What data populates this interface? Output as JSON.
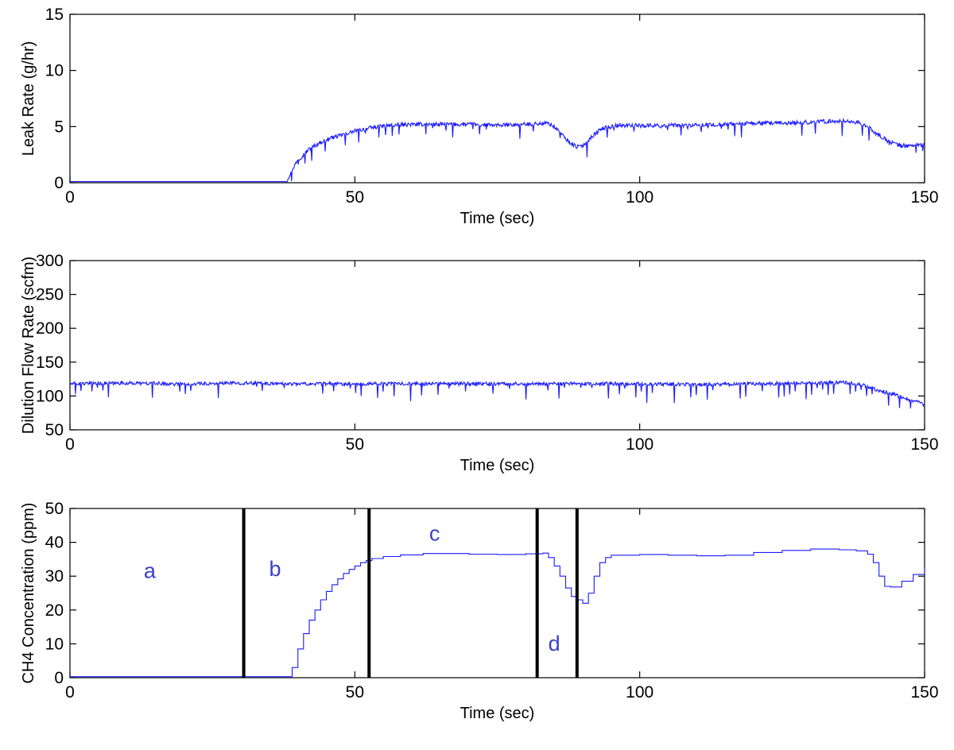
{
  "chart_data": [
    {
      "type": "line",
      "title": "",
      "xlabel": "Time (sec)",
      "ylabel": "Leak Rate (g/hr)",
      "xlim": [
        0,
        150
      ],
      "ylim": [
        0,
        15
      ],
      "xticks": [
        0,
        50,
        100,
        150
      ],
      "yticks": [
        0,
        5,
        10,
        15
      ],
      "grid": false,
      "color": "#1a1aff",
      "noise": 0.18,
      "spike_every": 11,
      "spike_depth": 0.6,
      "series": [
        {
          "x": [
            0,
            38,
            39,
            40,
            41,
            42,
            43,
            44,
            45,
            46,
            48,
            50,
            52,
            54,
            56,
            60,
            65,
            70,
            75,
            80,
            84,
            85,
            86,
            87,
            88,
            89,
            90,
            91,
            92,
            93,
            94,
            95,
            96,
            98,
            100,
            105,
            110,
            115,
            120,
            125,
            130,
            135,
            138,
            140,
            142,
            144,
            146,
            148,
            150
          ],
          "y": [
            0.1,
            0.1,
            1.2,
            2.0,
            2.5,
            3.0,
            3.3,
            3.6,
            3.8,
            4.0,
            4.3,
            4.6,
            4.8,
            5.0,
            5.1,
            5.2,
            5.2,
            5.2,
            5.1,
            5.2,
            5.3,
            5.0,
            4.5,
            3.9,
            3.5,
            3.2,
            3.3,
            3.8,
            4.3,
            4.7,
            4.9,
            5.0,
            5.1,
            5.1,
            5.1,
            5.1,
            5.1,
            5.2,
            5.3,
            5.3,
            5.4,
            5.5,
            5.4,
            5.0,
            4.2,
            3.6,
            3.3,
            3.3,
            3.4
          ]
        }
      ]
    },
    {
      "type": "line",
      "title": "",
      "xlabel": "Time (sec)",
      "ylabel": "Dilution Flow Rate (scfm)",
      "xlim": [
        0,
        150
      ],
      "ylim": [
        50,
        300
      ],
      "xticks": [
        0,
        50,
        100,
        150
      ],
      "yticks": [
        50,
        100,
        150,
        200,
        250,
        300
      ],
      "grid": false,
      "color": "#1a1aff",
      "noise": 2.6,
      "spike_every": 9,
      "spike_depth": 12,
      "series": [
        {
          "x": [
            0,
            10,
            20,
            30,
            40,
            50,
            60,
            70,
            80,
            90,
            100,
            110,
            120,
            130,
            136,
            138,
            140,
            142,
            144,
            146,
            148,
            150
          ],
          "y": [
            118,
            119,
            118,
            119,
            118,
            118,
            118,
            118,
            118,
            118,
            118,
            117,
            118,
            119,
            120,
            118,
            114,
            108,
            104,
            98,
            93,
            87
          ]
        }
      ]
    },
    {
      "type": "line",
      "title": "",
      "xlabel": "Time (sec)",
      "ylabel": "CH4 Concentration (ppm)",
      "xlim": [
        0,
        150
      ],
      "ylim": [
        0,
        50
      ],
      "xticks": [
        0,
        50,
        100,
        150
      ],
      "yticks": [
        0,
        10,
        20,
        30,
        40,
        50
      ],
      "grid": false,
      "color": "#1a1aff",
      "step": true,
      "series": [
        {
          "x": [
            0,
            38,
            39,
            40,
            41,
            42,
            43,
            44,
            45,
            46,
            47,
            48,
            49,
            50,
            51,
            52,
            53,
            55,
            58,
            62,
            66,
            70,
            75,
            80,
            83,
            84,
            85,
            86,
            87,
            88,
            89,
            90,
            91,
            92,
            93,
            94,
            95,
            100,
            105,
            110,
            115,
            120,
            125,
            130,
            135,
            138,
            140,
            141,
            142,
            143,
            144,
            146,
            148,
            150
          ],
          "y": [
            0.3,
            0.3,
            3,
            8.5,
            13,
            17,
            20,
            23,
            25.5,
            27.5,
            29.2,
            30.8,
            32,
            33,
            34,
            34.6,
            35.2,
            35.8,
            36.3,
            36.7,
            36.7,
            36.5,
            36.4,
            36.6,
            36.8,
            35.5,
            33,
            30,
            26.5,
            24,
            23,
            22,
            25,
            30,
            34,
            35.5,
            36.2,
            36.4,
            36.2,
            36.0,
            36.2,
            37.0,
            37.6,
            38.0,
            37.8,
            37.5,
            36.5,
            34,
            30,
            27,
            26.8,
            28.5,
            30.5,
            32.5
          ]
        }
      ],
      "dividers": [
        30.5,
        52.5,
        82,
        89
      ],
      "annotations": [
        {
          "text": "a",
          "x": 14,
          "y": 29.5
        },
        {
          "text": "b",
          "x": 36,
          "y": 30
        },
        {
          "text": "c",
          "x": 64,
          "y": 40.5
        },
        {
          "text": "d",
          "x": 85,
          "y": 8
        }
      ]
    }
  ]
}
